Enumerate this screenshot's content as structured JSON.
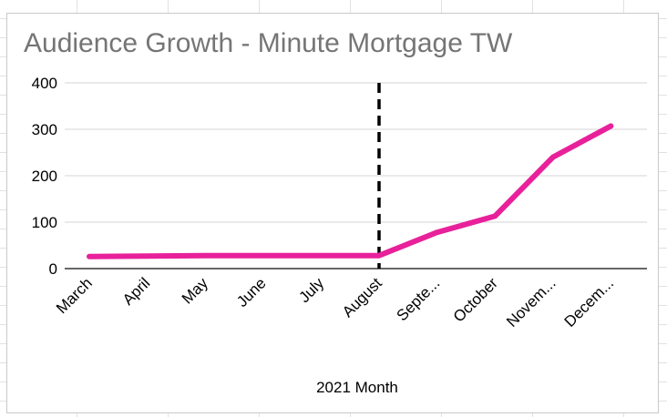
{
  "chart_data": {
    "type": "line",
    "title": "Audience Growth - Minute Mortgage TW",
    "xlabel": "2021 Month",
    "ylabel": "",
    "categories": [
      "March",
      "April",
      "May",
      "June",
      "July",
      "August",
      "Septe...",
      "October",
      "Novem...",
      "Decem..."
    ],
    "series": [
      {
        "values": [
          26,
          27,
          28,
          28,
          28,
          28,
          78,
          113,
          240,
          307
        ]
      }
    ],
    "ylim": [
      0,
      400
    ],
    "yticks": [
      0,
      100,
      200,
      300,
      400
    ],
    "grid": true,
    "legend": "none",
    "annotation": {
      "type": "vertical-dashed-line",
      "at_category": "August"
    },
    "colors": {
      "line": "#e8219b",
      "grid": "#d6d6d6",
      "axis": "#333333",
      "annotation": "#000000",
      "title": "#757575"
    }
  }
}
